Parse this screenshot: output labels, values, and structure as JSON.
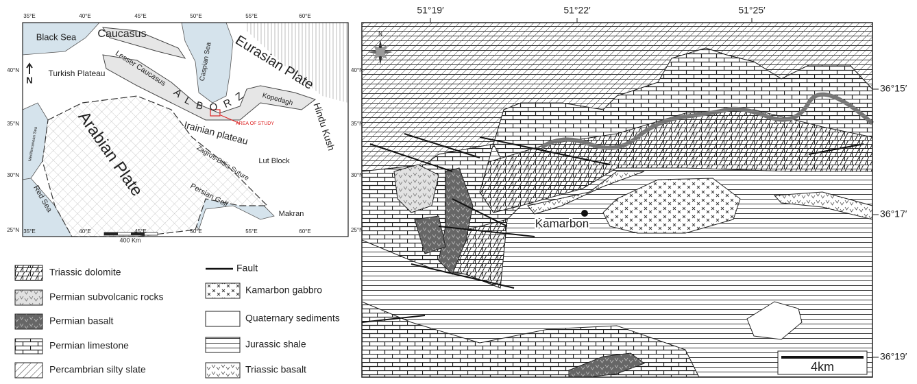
{
  "inset": {
    "lon_ticks": [
      "35°E",
      "40°E",
      "45°E",
      "50°E",
      "55°E",
      "60°E"
    ],
    "lat_ticks": [
      "40°N",
      "35°N",
      "30°N",
      "25°N"
    ],
    "labels": [
      "Black Sea",
      "Caucasus",
      "Caspian Sea",
      "Eurasian Plate",
      "Lesser Caucasus",
      "Turkish Plateau",
      "A L B O R Z",
      "Kopedagh",
      "Hindu Kush",
      "AREA OF STUDY",
      "Arabian Plate",
      "Mediterranean Sea",
      "Irainian plateau",
      "Zagros-Bitlis Suture",
      "Lut Block",
      "Persian Golf",
      "Red Sea",
      "Makran"
    ],
    "scale": "400 Km",
    "north": "N"
  },
  "legend": [
    "Triassic dolomite",
    "Permian subvolcanic rocks",
    "Permian basalt",
    "Permian limestone",
    "Percambrian silty slate",
    "Fault",
    "Kamarbon gabbro",
    "Quaternary sediments",
    "Jurassic shale",
    "Triassic basalt"
  ],
  "map": {
    "lon_ticks": [
      "51°19′",
      "51°22′",
      "51°25′"
    ],
    "lat_ticks": [
      "36°15′",
      "36°17′",
      "36°19′"
    ],
    "place": "Kamarbon",
    "scale": "4km",
    "north": "N"
  }
}
